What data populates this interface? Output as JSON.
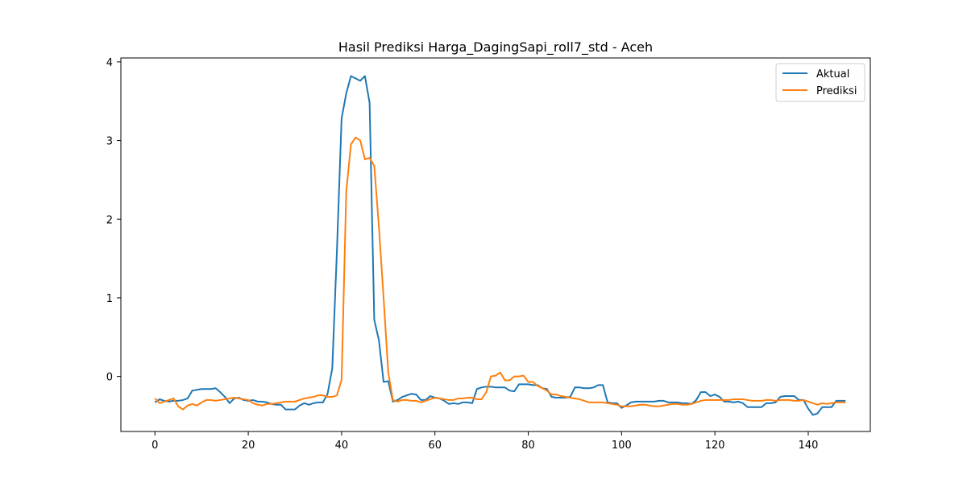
{
  "chart_data": {
    "type": "line",
    "title": "Hasil Prediksi Harga_DagingSapi_roll7_std - Aceh",
    "xlabel": "",
    "ylabel": "",
    "xlim": [
      -7.3,
      153.3
    ],
    "ylim": [
      -0.7,
      4.05
    ],
    "xticks": [
      0,
      20,
      40,
      60,
      80,
      100,
      120,
      140
    ],
    "yticks": [
      0,
      1,
      2,
      3,
      4
    ],
    "grid": false,
    "legend_position": "top-right",
    "series": [
      {
        "name": "Aktual",
        "color": "#1f77b4",
        "values": [
          -0.33,
          -0.29,
          -0.31,
          -0.32,
          -0.31,
          -0.31,
          -0.3,
          -0.28,
          -0.18,
          -0.17,
          -0.16,
          -0.16,
          -0.16,
          -0.15,
          -0.2,
          -0.26,
          -0.34,
          -0.28,
          -0.27,
          -0.3,
          -0.31,
          -0.3,
          -0.32,
          -0.32,
          -0.33,
          -0.35,
          -0.36,
          -0.36,
          -0.42,
          -0.42,
          -0.42,
          -0.37,
          -0.34,
          -0.36,
          -0.34,
          -0.33,
          -0.33,
          -0.22,
          0.1,
          1.6,
          3.28,
          3.6,
          3.82,
          3.79,
          3.76,
          3.82,
          3.48,
          0.72,
          0.46,
          -0.07,
          -0.06,
          -0.32,
          -0.3,
          -0.26,
          -0.24,
          -0.22,
          -0.23,
          -0.3,
          -0.3,
          -0.25,
          -0.27,
          -0.28,
          -0.31,
          -0.35,
          -0.34,
          -0.35,
          -0.33,
          -0.33,
          -0.34,
          -0.16,
          -0.14,
          -0.13,
          -0.13,
          -0.14,
          -0.14,
          -0.14,
          -0.18,
          -0.19,
          -0.1,
          -0.1,
          -0.1,
          -0.11,
          -0.11,
          -0.15,
          -0.16,
          -0.26,
          -0.27,
          -0.27,
          -0.27,
          -0.26,
          -0.14,
          -0.14,
          -0.15,
          -0.15,
          -0.14,
          -0.11,
          -0.11,
          -0.33,
          -0.34,
          -0.34,
          -0.4,
          -0.37,
          -0.33,
          -0.32,
          -0.32,
          -0.32,
          -0.32,
          -0.32,
          -0.31,
          -0.31,
          -0.33,
          -0.33,
          -0.33,
          -0.34,
          -0.34,
          -0.35,
          -0.3,
          -0.2,
          -0.2,
          -0.25,
          -0.23,
          -0.26,
          -0.32,
          -0.32,
          -0.33,
          -0.32,
          -0.34,
          -0.39,
          -0.39,
          -0.39,
          -0.39,
          -0.34,
          -0.34,
          -0.33,
          -0.26,
          -0.25,
          -0.25,
          -0.25,
          -0.3,
          -0.3,
          -0.41,
          -0.49,
          -0.47,
          -0.39,
          -0.39,
          -0.39,
          -0.31,
          -0.31,
          -0.31
        ]
      },
      {
        "name": "Prediksi",
        "color": "#ff7f0e",
        "values": [
          -0.28,
          -0.34,
          -0.32,
          -0.3,
          -0.28,
          -0.38,
          -0.42,
          -0.37,
          -0.35,
          -0.37,
          -0.33,
          -0.3,
          -0.3,
          -0.31,
          -0.3,
          -0.29,
          -0.28,
          -0.27,
          -0.28,
          -0.29,
          -0.3,
          -0.34,
          -0.36,
          -0.37,
          -0.35,
          -0.35,
          -0.34,
          -0.33,
          -0.32,
          -0.32,
          -0.32,
          -0.3,
          -0.28,
          -0.27,
          -0.26,
          -0.24,
          -0.24,
          -0.26,
          -0.26,
          -0.24,
          -0.04,
          2.35,
          2.95,
          3.04,
          3.0,
          2.76,
          2.78,
          2.68,
          1.9,
          1.0,
          0.05,
          -0.3,
          -0.32,
          -0.3,
          -0.3,
          -0.31,
          -0.31,
          -0.33,
          -0.31,
          -0.29,
          -0.27,
          -0.28,
          -0.29,
          -0.3,
          -0.3,
          -0.28,
          -0.28,
          -0.27,
          -0.27,
          -0.29,
          -0.29,
          -0.2,
          0.0,
          0.01,
          0.05,
          -0.05,
          -0.05,
          0.0,
          0.0,
          0.01,
          -0.07,
          -0.07,
          -0.12,
          -0.15,
          -0.18,
          -0.23,
          -0.23,
          -0.25,
          -0.26,
          -0.27,
          -0.28,
          -0.29,
          -0.31,
          -0.33,
          -0.33,
          -0.33,
          -0.33,
          -0.34,
          -0.35,
          -0.36,
          -0.38,
          -0.38,
          -0.38,
          -0.37,
          -0.36,
          -0.36,
          -0.37,
          -0.38,
          -0.38,
          -0.37,
          -0.36,
          -0.35,
          -0.35,
          -0.36,
          -0.36,
          -0.35,
          -0.33,
          -0.31,
          -0.3,
          -0.3,
          -0.3,
          -0.3,
          -0.3,
          -0.3,
          -0.29,
          -0.29,
          -0.29,
          -0.3,
          -0.31,
          -0.31,
          -0.31,
          -0.3,
          -0.3,
          -0.31,
          -0.3,
          -0.3,
          -0.3,
          -0.31,
          -0.31,
          -0.3,
          -0.32,
          -0.34,
          -0.36,
          -0.34,
          -0.35,
          -0.34,
          -0.33,
          -0.33,
          -0.33
        ]
      }
    ]
  }
}
